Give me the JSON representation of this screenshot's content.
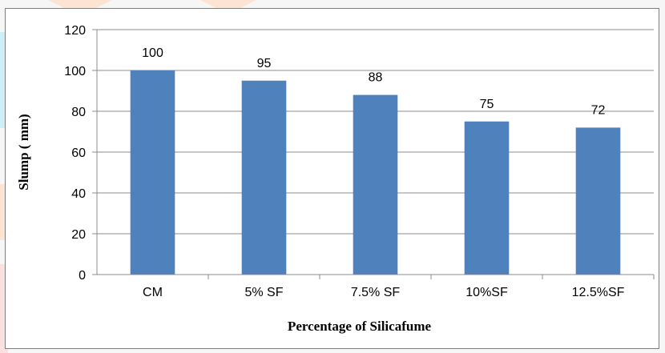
{
  "colors": {
    "bar": "#4f81bd",
    "grid": "#8c8c8c",
    "axis": "#8c8c8c",
    "frame": "#7f7f7f"
  },
  "chart_data": {
    "type": "bar",
    "categories": [
      "CM",
      "5% SF",
      "7.5% SF",
      "10%SF",
      "12.5%SF"
    ],
    "values": [
      100,
      95,
      88,
      75,
      72
    ],
    "data_labels": [
      "100",
      "95",
      "88",
      "75",
      "72"
    ],
    "title": "",
    "xlabel": "Percentage of Silicafume",
    "ylabel": "Slump ( mm)",
    "ylim": [
      0,
      120
    ],
    "yticks": [
      0,
      20,
      40,
      60,
      80,
      100,
      120
    ],
    "grid": true,
    "legend": "none"
  }
}
